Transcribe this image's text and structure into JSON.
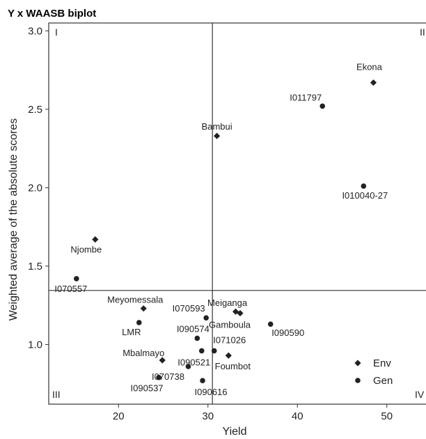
{
  "chart_data": {
    "type": "scatter",
    "title": "Y x WAASB biplot",
    "xlabel": "Yield",
    "ylabel": "Weighted average of the absolute scores",
    "xlim": [
      12.2,
      55
    ],
    "ylim": [
      0.62,
      3.05
    ],
    "xticks": [
      20,
      30,
      40,
      50
    ],
    "yticks": [
      1.0,
      1.5,
      2.0,
      2.5,
      3.0
    ],
    "ytick_labels": [
      "1.0",
      "1.5",
      "2.0",
      "2.5",
      "3.0"
    ],
    "ref_x": 30.5,
    "ref_y": 1.345,
    "quadrants": [
      "I",
      "II",
      "III",
      "IV"
    ],
    "legend": {
      "position": "bottom-right",
      "entries": [
        {
          "name": "Env",
          "marker": "diamond"
        },
        {
          "name": "Gen",
          "marker": "circle"
        }
      ]
    },
    "series": [
      {
        "name": "Env",
        "marker": "diamond",
        "points": [
          {
            "label": "Ekona",
            "x": 48.5,
            "y": 2.67
          },
          {
            "label": "Bambui",
            "x": 31.0,
            "y": 2.33
          },
          {
            "label": "Njombe",
            "x": 17.4,
            "y": 1.67
          },
          {
            "label": "Meyomessala",
            "x": 22.8,
            "y": 1.23
          },
          {
            "label": "Meiganga",
            "x": 33.1,
            "y": 1.21
          },
          {
            "label": "Gamboula",
            "x": 33.6,
            "y": 1.2
          },
          {
            "label": "Foumbot",
            "x": 32.3,
            "y": 0.93
          },
          {
            "label": "Mbalmayo",
            "x": 24.9,
            "y": 0.9
          }
        ]
      },
      {
        "name": "Gen",
        "marker": "circle",
        "points": [
          {
            "label": "I011797",
            "x": 42.8,
            "y": 2.52
          },
          {
            "label": "I010040-27",
            "x": 47.4,
            "y": 2.01
          },
          {
            "label": "I070557",
            "x": 15.3,
            "y": 1.42
          },
          {
            "label": "I070593",
            "x": 29.8,
            "y": 1.17
          },
          {
            "label": "LMR",
            "x": 22.3,
            "y": 1.14
          },
          {
            "label": "I090590",
            "x": 37.0,
            "y": 1.13
          },
          {
            "label": "I090574",
            "x": 28.8,
            "y": 1.04
          },
          {
            "label": "I071026",
            "x": 30.7,
            "y": 0.96
          },
          {
            "label": "I090521",
            "x": 29.3,
            "y": 0.96
          },
          {
            "label": "I070738",
            "x": 27.8,
            "y": 0.86
          },
          {
            "label": "I090537",
            "x": 24.5,
            "y": 0.79
          },
          {
            "label": "I090616",
            "x": 29.4,
            "y": 0.77
          }
        ]
      }
    ]
  }
}
